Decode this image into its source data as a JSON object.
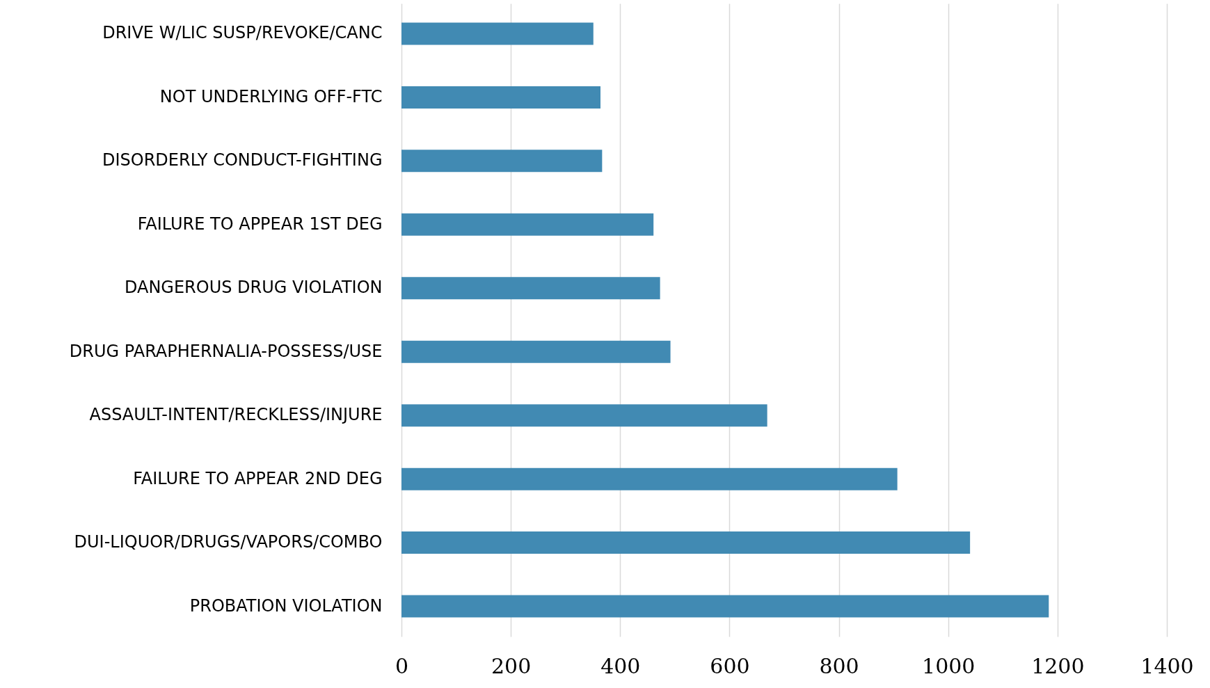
{
  "chart_data": {
    "type": "bar",
    "orientation": "horizontal",
    "categories": [
      "DRIVE W/LIC SUSP/REVOKE/CANC",
      "NOT UNDERLYING OFF-FTC",
      "DISORDERLY CONDUCT-FIGHTING",
      "FAILURE TO APPEAR 1ST DEG",
      "DANGEROUS DRUG VIOLATION",
      "DRUG PARAPHERNALIA-POSSESS/USE",
      "ASSAULT-INTENT/RECKLESS/INJURE",
      "FAILURE TO APPEAR 2ND DEG",
      "DUI-LIQUOR/DRUGS/VAPORS/COMBO",
      "PROBATION VIOLATION"
    ],
    "values": [
      351,
      364,
      367,
      461,
      473,
      492,
      669,
      907,
      1040,
      1184
    ],
    "color": "#418ab3",
    "xlim": [
      0,
      1400
    ],
    "xticks": [
      0,
      200,
      400,
      600,
      800,
      1000,
      1200,
      1400
    ],
    "grid": "x"
  }
}
